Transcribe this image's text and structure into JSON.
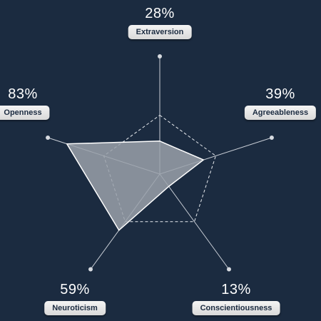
{
  "chart_data": {
    "type": "radar",
    "max": 100,
    "axes": [
      {
        "label": "Extraversion",
        "value": 28,
        "value_label": "28%"
      },
      {
        "label": "Agreeableness",
        "value": 39,
        "value_label": "39%"
      },
      {
        "label": "Conscientiousness",
        "value": 13,
        "value_label": "13%"
      },
      {
        "label": "Neuroticism",
        "value": 59,
        "value_label": "59%"
      },
      {
        "label": "Openness",
        "value": 83,
        "value_label": "83%"
      }
    ],
    "reference_level": 50,
    "grid": true,
    "colors": {
      "background": "#1b2b40",
      "axis": "#c9ced6",
      "fill": "#9aa1aa",
      "pill": "#e6e6e6",
      "text": "#ffffff"
    }
  }
}
